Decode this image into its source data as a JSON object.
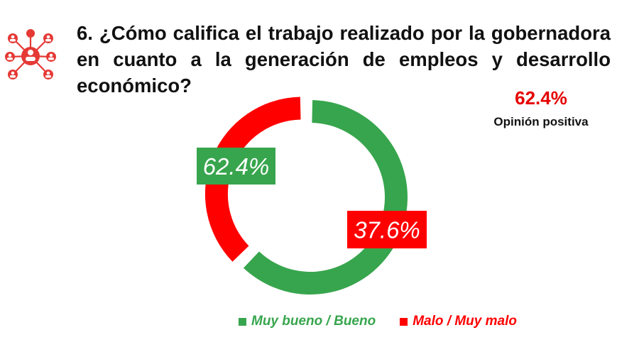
{
  "question": "6. ¿Cómo califica el trabajo realizado por la gobernadora en cuanto a la generación de empleos y desarrollo económico?",
  "summary": {
    "value": "62.4%",
    "label": "Opinión positiva"
  },
  "colors": {
    "positive": "#37a54d",
    "negative": "#ff0000",
    "accent": "#e60000"
  },
  "logo_icon": "network-people-icon",
  "chart_data": {
    "type": "pie",
    "style": "donut",
    "slices": [
      {
        "label": "Muy bueno / Bueno",
        "value": 62.4,
        "display": "62.4%",
        "color": "#37a54d"
      },
      {
        "label": "Malo / Muy malo",
        "value": 37.6,
        "display": "37.6%",
        "color": "#ff0000"
      }
    ],
    "legend_position": "bottom"
  }
}
